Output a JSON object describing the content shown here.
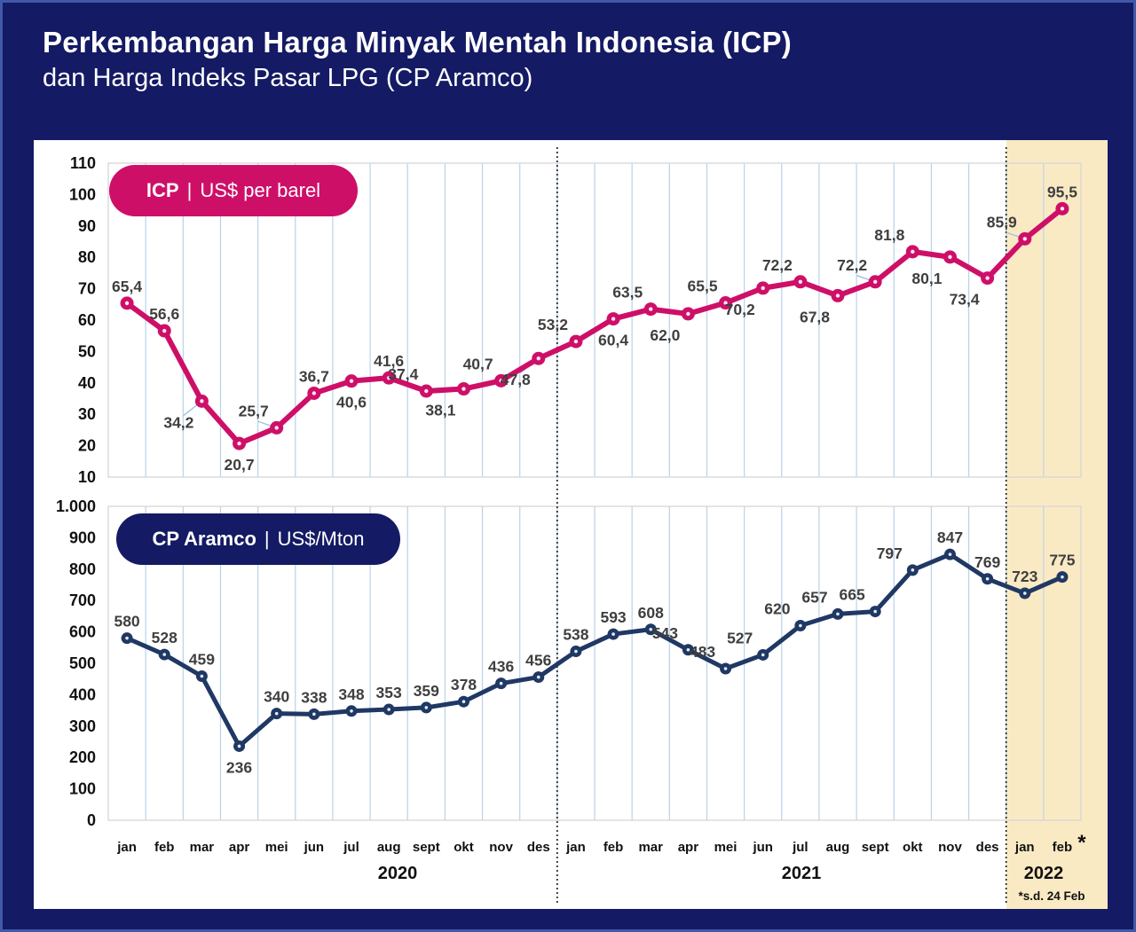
{
  "header": {
    "title": "Perkembangan Harga Minyak Mentah Indonesia (ICP)",
    "subtitle": "dan Harga Indeks Pasar LPG (CP Aramco)"
  },
  "badges": {
    "icp": {
      "bold": "ICP",
      "separator": "|",
      "text": "US$ per barel"
    },
    "cp": {
      "bold": "CP Aramco",
      "separator": "|",
      "text": "US$/Mton"
    }
  },
  "x_axis": {
    "month_labels": [
      "jan",
      "feb",
      "mar",
      "apr",
      "mei",
      "jun",
      "jul",
      "aug",
      "sept",
      "okt",
      "nov",
      "des",
      "jan",
      "feb",
      "mar",
      "apr",
      "mei",
      "jun",
      "jul",
      "aug",
      "sept",
      "okt",
      "nov",
      "des",
      "jan",
      "feb"
    ],
    "year_groups": [
      {
        "label": "2020",
        "count": 12
      },
      {
        "label": "2021",
        "count": 12
      },
      {
        "label": "2022",
        "count": 2
      }
    ],
    "asterisk": "*",
    "footnote": "*s.d. 24 Feb"
  },
  "colors": {
    "background_navy": "#141a63",
    "frame_border": "#4159a8",
    "panel_white": "#ffffff",
    "highlight_band": "#faeac4",
    "icp_pink": "#ce0f68",
    "cp_navy": "#1f3864",
    "gridline_blue": "#b7d3ea",
    "plot_border_gray": "#d8d8d8",
    "separator_dotted": "#1a1a1a",
    "data_label_gray": "#3f3f3f"
  },
  "chart_data": [
    {
      "type": "line",
      "name": "ICP",
      "title": "ICP | US$ per barel",
      "unit": "US$ per barel",
      "ylim": [
        10,
        110
      ],
      "ytick_labels": [
        "110",
        "100",
        "90",
        "80",
        "70",
        "60",
        "50",
        "40",
        "30",
        "20",
        "10"
      ],
      "grid": "vertical-only",
      "legend": "badge-top-left",
      "line_color": "#ce0f68",
      "values": [
        65.4,
        56.6,
        34.2,
        20.7,
        25.7,
        36.7,
        40.6,
        41.6,
        37.4,
        38.1,
        40.7,
        47.8,
        53.2,
        60.4,
        63.5,
        62.0,
        65.5,
        70.2,
        72.2,
        67.8,
        72.2,
        81.8,
        80.1,
        73.4,
        85.9,
        95.5
      ],
      "point_labels": [
        "65,4",
        "56,6",
        "34,2",
        "20,7",
        "25,7",
        "36,7",
        "40,6",
        "41,6",
        "37,4",
        "38,1",
        "40,7",
        "47,8",
        "53,2",
        "60,4",
        "63,5",
        "62,0",
        "65,5",
        "70,2",
        "72,2",
        "67,8",
        "72,2",
        "81,8",
        "80,1",
        "73,4",
        "85,9",
        "95,5"
      ],
      "label_pos": [
        "a",
        "a",
        "bl+",
        "b",
        "al+",
        "a",
        "b",
        "a",
        "al",
        "bl",
        "al",
        "bl+",
        "al",
        "b",
        "al",
        "bl",
        "al",
        "bl",
        "al",
        "bl",
        "al+",
        "al",
        "bl",
        "bl",
        "al+",
        "a"
      ]
    },
    {
      "type": "line",
      "name": "CP Aramco",
      "title": "CP Aramco | US$/Mton",
      "unit": "US$/Mton",
      "ylim": [
        0,
        1000
      ],
      "ytick_labels": [
        "1.000",
        "900",
        "800",
        "700",
        "600",
        "500",
        "400",
        "300",
        "200",
        "100",
        "0"
      ],
      "grid": "vertical-only",
      "legend": "badge-top-left",
      "line_color": "#1f3864",
      "values": [
        580,
        528,
        459,
        236,
        340,
        338,
        348,
        353,
        359,
        378,
        436,
        456,
        538,
        593,
        608,
        543,
        483,
        527,
        620,
        657,
        665,
        797,
        847,
        769,
        723,
        775
      ],
      "point_labels": [
        "580",
        "528",
        "459",
        "236",
        "340",
        "338",
        "348",
        "353",
        "359",
        "378",
        "436",
        "456",
        "538",
        "593",
        "608",
        "543",
        "483",
        "527",
        "620",
        "657",
        "665",
        "797",
        "847",
        "769",
        "723",
        "775"
      ],
      "label_pos": [
        "a",
        "a",
        "a",
        "b",
        "a",
        "a",
        "a",
        "a",
        "a",
        "a",
        "a",
        "a",
        "a",
        "a",
        "a",
        "al",
        "al",
        "al",
        "al",
        "al",
        "al",
        "al",
        "a",
        "a",
        "a",
        "a"
      ]
    }
  ]
}
